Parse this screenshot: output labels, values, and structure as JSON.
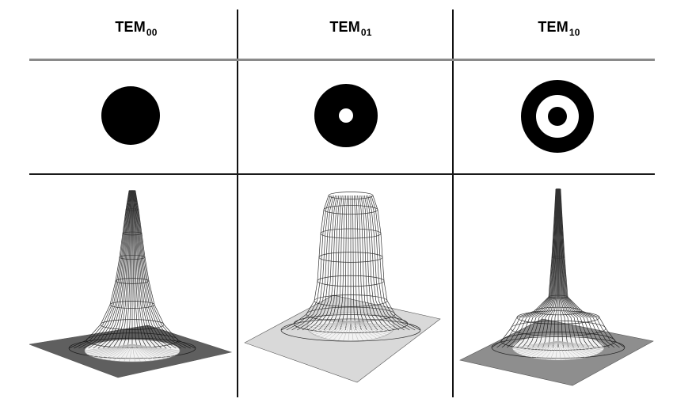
{
  "columns": [
    {
      "label": "TEM",
      "subscript": "00",
      "pattern": "gaussian-spot"
    },
    {
      "label": "TEM",
      "subscript": "01",
      "pattern": "donut"
    },
    {
      "label": "TEM",
      "subscript": "10",
      "pattern": "bullseye"
    }
  ],
  "colors": {
    "pattern_fill": "#000000",
    "grid_dark": "#111111",
    "grid_light": "#8a8a8a",
    "mesh_dark": "#111111",
    "plane_00": "#5f5f5f",
    "plane_01": "#d9d9d9",
    "plane_10": "#8e8e8e"
  }
}
